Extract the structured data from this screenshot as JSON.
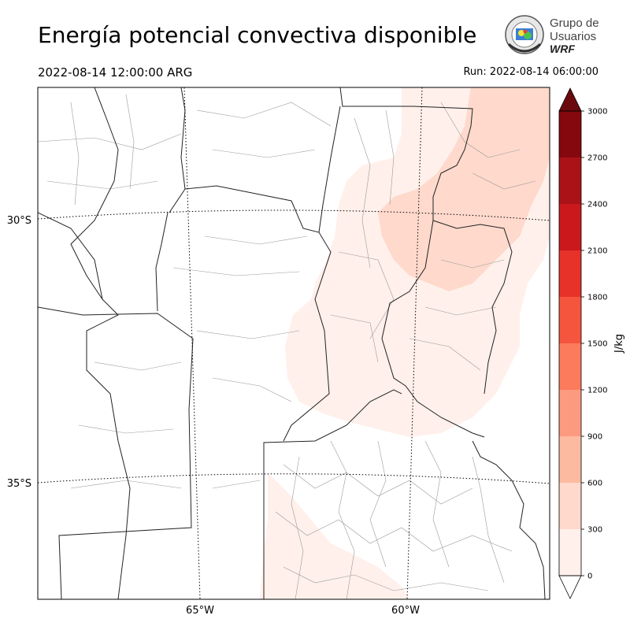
{
  "header": {
    "title": "Energía potencial convectiva disponible",
    "valid_time": "2022-08-14 12:00:00 ARG",
    "run_time": "Run: 2022-08-14 06:00:00"
  },
  "logo": {
    "line1": "Grupo de",
    "line2": "Usuarios",
    "line3": "WRF"
  },
  "map": {
    "lat_labels": [
      "30°S",
      "35°S"
    ],
    "lon_labels": [
      "65°W",
      "60°W"
    ]
  },
  "colorbar": {
    "unit": "J/kg",
    "ticks": [
      "0",
      "300",
      "600",
      "900",
      "1200",
      "1500",
      "1800",
      "2100",
      "2400",
      "2700",
      "3000"
    ],
    "colors": [
      "#fff0eb",
      "#fed9cc",
      "#fcbba1",
      "#fc9a80",
      "#fb7b5c",
      "#f5553d",
      "#e63229",
      "#cb181d",
      "#aa1218",
      "#85080e",
      "#6b0a0e"
    ]
  },
  "chart_data": {
    "type": "heatmap",
    "title": "Energía potencial convectiva disponible",
    "variable": "CAPE",
    "unit": "J/kg",
    "levels": [
      0,
      300,
      600,
      900,
      1200,
      1500,
      1800,
      2100,
      2400,
      2700,
      3000
    ],
    "extend": "both",
    "lat_gridlines": [
      "30°S",
      "35°S"
    ],
    "lon_gridlines": [
      "65°W",
      "60°W"
    ]
  }
}
